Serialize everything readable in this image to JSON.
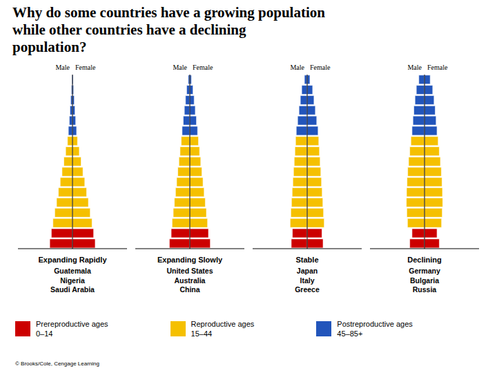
{
  "title": "Why do some countries have a growing population\nwhile other countries have a declining\npopulation?",
  "chart_data": [
    {
      "type": "bar",
      "orientation": "horizontal",
      "stacked": true,
      "grid": false,
      "tick_labels": false,
      "title": "Expanding Rapidly",
      "subtitle": "Guatemala\nNigeria\nSaudi Arabia",
      "xlim": [
        -12,
        12
      ],
      "categories": [
        null,
        null,
        null,
        null,
        null,
        null,
        null,
        null,
        null,
        null,
        null,
        null,
        null,
        null,
        null,
        null,
        null
      ],
      "colors": [
        "#cc0000",
        "#cc0000",
        "#f5c000",
        "#f5c000",
        "#f5c000",
        "#f5c000",
        "#f5c000",
        "#f5c000",
        "#f5c000",
        "#f5c000",
        "#f5c000",
        "#2255bb",
        "#2255bb",
        "#2255bb",
        "#2255bb",
        "#2255bb",
        "#2255bb"
      ],
      "series": [
        {
          "name": "Male",
          "values": [
            -5.0,
            -4.65,
            -4.3,
            -3.9,
            -3.5,
            -3.1,
            -2.7,
            -2.3,
            -1.9,
            -1.5,
            -1.1,
            -0.9,
            -0.7,
            -0.55,
            -0.4,
            -0.25,
            -0.15
          ]
        },
        {
          "name": "Female",
          "values": [
            5.0,
            4.65,
            4.3,
            3.9,
            3.5,
            3.1,
            2.7,
            2.3,
            1.9,
            1.5,
            1.1,
            0.9,
            0.7,
            0.55,
            0.4,
            0.25,
            0.15
          ]
        }
      ]
    },
    {
      "type": "bar",
      "orientation": "horizontal",
      "stacked": true,
      "grid": false,
      "tick_labels": false,
      "title": "Expanding Slowly",
      "subtitle": "United States\nAustralia\nChina",
      "xlim": [
        -12,
        12
      ],
      "categories": [
        null,
        null,
        null,
        null,
        null,
        null,
        null,
        null,
        null,
        null,
        null,
        null,
        null,
        null,
        null,
        null,
        null
      ],
      "colors": [
        "#cc0000",
        "#cc0000",
        "#f5c000",
        "#f5c000",
        "#f5c000",
        "#f5c000",
        "#f5c000",
        "#f5c000",
        "#f5c000",
        "#f5c000",
        "#f5c000",
        "#2255bb",
        "#2255bb",
        "#2255bb",
        "#2255bb",
        "#2255bb",
        "#2255bb"
      ],
      "series": [
        {
          "name": "Male",
          "values": [
            -4.5,
            -4.1,
            -3.9,
            -3.65,
            -3.4,
            -3.15,
            -2.9,
            -2.65,
            -2.4,
            -2.15,
            -1.9,
            -1.7,
            -1.45,
            -1.2,
            -0.95,
            -0.7,
            -0.35
          ]
        },
        {
          "name": "Female",
          "values": [
            4.5,
            4.1,
            3.9,
            3.65,
            3.4,
            3.15,
            2.9,
            2.65,
            2.4,
            2.15,
            1.9,
            1.7,
            1.45,
            1.2,
            0.95,
            0.7,
            0.35
          ]
        }
      ]
    },
    {
      "type": "bar",
      "orientation": "horizontal",
      "stacked": true,
      "grid": false,
      "tick_labels": false,
      "title": "Stable",
      "subtitle": "Japan\nItaly\nGreece",
      "xlim": [
        -12,
        12
      ],
      "categories": [
        null,
        null,
        null,
        null,
        null,
        null,
        null,
        null,
        null,
        null,
        null,
        null,
        null,
        null,
        null,
        null,
        null
      ],
      "colors": [
        "#cc0000",
        "#cc0000",
        "#f5c000",
        "#f5c000",
        "#f5c000",
        "#f5c000",
        "#f5c000",
        "#f5c000",
        "#f5c000",
        "#f5c000",
        "#f5c000",
        "#2255bb",
        "#2255bb",
        "#2255bb",
        "#2255bb",
        "#2255bb",
        "#2255bb"
      ],
      "series": [
        {
          "name": "Male",
          "values": [
            -3.5,
            -3.25,
            -3.75,
            -3.6,
            -3.45,
            -3.3,
            -3.15,
            -3.0,
            -2.85,
            -2.7,
            -2.55,
            -2.4,
            -2.1,
            -1.8,
            -1.5,
            -1.2,
            -0.6
          ]
        },
        {
          "name": "Female",
          "values": [
            3.5,
            3.25,
            3.75,
            3.6,
            3.45,
            3.3,
            3.15,
            3.0,
            2.85,
            2.7,
            2.55,
            2.4,
            2.1,
            1.8,
            1.5,
            1.2,
            0.6
          ]
        }
      ]
    },
    {
      "type": "bar",
      "orientation": "horizontal",
      "stacked": true,
      "grid": false,
      "tick_labels": false,
      "title": "Declining",
      "subtitle": "Germany\nBulgaria\nRussia",
      "xlim": [
        -12,
        12
      ],
      "categories": [
        null,
        null,
        null,
        null,
        null,
        null,
        null,
        null,
        null,
        null,
        null,
        null,
        null,
        null,
        null,
        null,
        null
      ],
      "colors": [
        "#cc0000",
        "#cc0000",
        "#f5c000",
        "#f5c000",
        "#f5c000",
        "#f5c000",
        "#f5c000",
        "#f5c000",
        "#f5c000",
        "#f5c000",
        "#f5c000",
        "#2255bb",
        "#2255bb",
        "#2255bb",
        "#2255bb",
        "#2255bb",
        "#2255bb"
      ],
      "series": [
        {
          "name": "Male",
          "values": [
            -3.25,
            -2.75,
            -3.75,
            -3.9,
            -4.0,
            -3.95,
            -3.85,
            -3.7,
            -3.5,
            -3.25,
            -3.0,
            -2.75,
            -2.55,
            -2.35,
            -2.1,
            -1.8,
            -1.25
          ]
        },
        {
          "name": "Female",
          "values": [
            3.25,
            2.75,
            3.75,
            3.9,
            4.0,
            3.95,
            3.85,
            3.7,
            3.5,
            3.25,
            3.0,
            2.75,
            2.55,
            2.35,
            2.1,
            1.8,
            1.25
          ]
        }
      ]
    }
  ],
  "legend_items": [
    {
      "color": "#cc0000",
      "label": "Prereproductive ages\n0–14"
    },
    {
      "color": "#f5c000",
      "label": "Reproductive ages\n15–44"
    },
    {
      "color": "#2255bb",
      "label": "Postreproductive ages\n45–85+"
    }
  ],
  "copyright": "© Brooks/Cole, Cengage Learning"
}
